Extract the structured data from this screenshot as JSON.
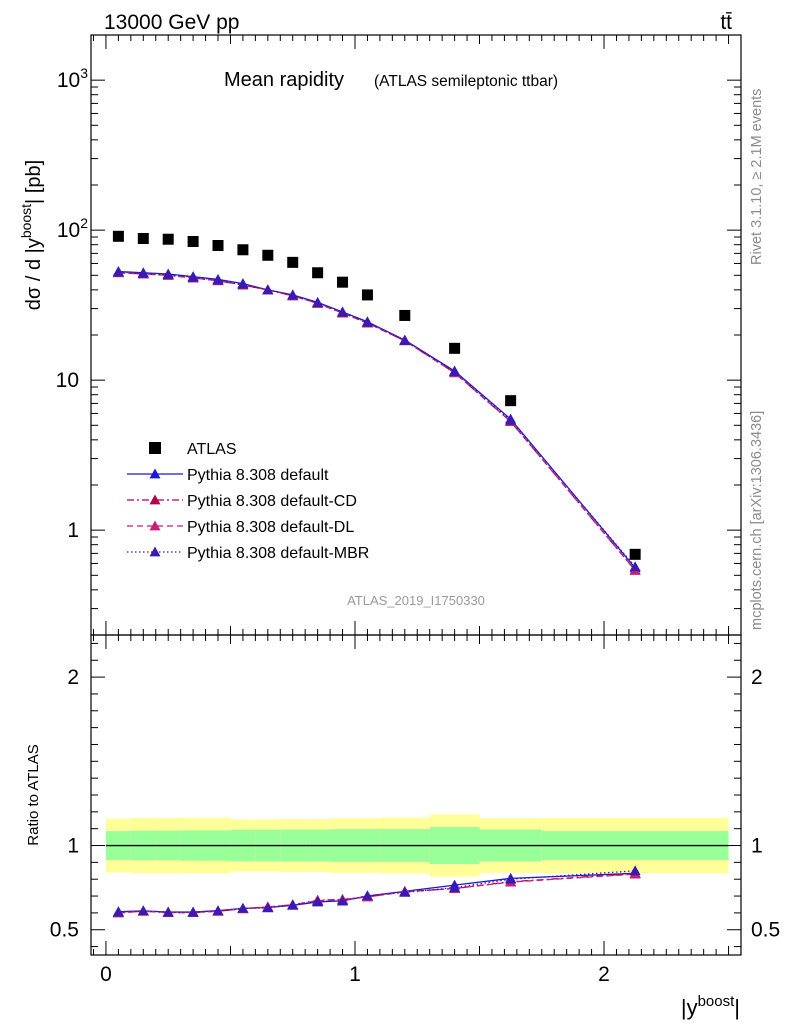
{
  "header": {
    "energy_label": "13000 GeV pp",
    "process_label": "tt̄"
  },
  "side_labels": {
    "rivet": "Rivet 3.1.10, ≥ 2.1M events",
    "mcplots": "mcplots.cern.ch [arXiv:1306.3436]"
  },
  "chart_data": [
    {
      "type": "scatter",
      "panel": "main",
      "title": "Mean rapidity",
      "subtitle": "(ATLAS semileptonic ttbar)",
      "ylabel": "dσ / d |y^boost| [pb]",
      "yscale": "log",
      "xlim": [
        -0.06,
        2.55
      ],
      "ylim": [
        0.2,
        2000
      ],
      "ytick_labels": [
        "1",
        "10",
        "10^2",
        "10^3"
      ],
      "analysis_label": "ATLAS_2019_I1750330",
      "legend_position": "lower-left",
      "x": [
        0.05,
        0.15,
        0.25,
        0.35,
        0.45,
        0.55,
        0.65,
        0.75,
        0.85,
        0.95,
        1.05,
        1.2,
        1.4,
        1.625,
        2.125
      ],
      "series": [
        {
          "name": "ATLAS",
          "style": "data",
          "color": "#000000",
          "values": [
            91,
            88,
            87,
            84,
            79,
            74,
            68,
            61,
            52,
            45,
            37,
            27,
            16.3,
            7.3,
            0.69
          ]
        },
        {
          "name": "Pythia 8.308 default",
          "style": "solid",
          "color": "#1a1ad4",
          "values": [
            53,
            52,
            51,
            49,
            47,
            44,
            40,
            37,
            33,
            28.5,
            24.5,
            18.5,
            11.5,
            5.5,
            0.56
          ]
        },
        {
          "name": "Pythia 8.308 default-CD",
          "style": "dashdot",
          "color": "#b3004d",
          "values": [
            52,
            51,
            50,
            48,
            46,
            43,
            40,
            36.5,
            32.5,
            28,
            24,
            18.3,
            11.2,
            5.3,
            0.54
          ]
        },
        {
          "name": "Pythia 8.308 default-DL",
          "style": "dashed",
          "color": "#c81e78",
          "values": [
            52,
            51,
            50,
            48,
            46,
            43,
            40,
            36.5,
            32.5,
            28,
            24,
            18.3,
            11.2,
            5.3,
            0.54
          ]
        },
        {
          "name": "Pythia 8.308 default-MBR",
          "style": "dotted",
          "color": "#3a1ab0",
          "values": [
            52.5,
            51.5,
            50.5,
            48.5,
            46.5,
            43.5,
            40,
            36.8,
            32.8,
            28.3,
            24.3,
            18.4,
            11.4,
            5.4,
            0.57
          ]
        }
      ]
    },
    {
      "type": "line",
      "panel": "ratio",
      "ylabel": "Ratio to ATLAS",
      "xlabel": "|y^boost|",
      "xlim": [
        -0.06,
        2.55
      ],
      "ylim": [
        0.35,
        2.25
      ],
      "ytick_labels": [
        "0.5",
        "1",
        "2"
      ],
      "xtick_labels": [
        "0",
        "1",
        "2"
      ],
      "bins": [
        [
          0.0,
          0.1
        ],
        [
          0.1,
          0.2
        ],
        [
          0.2,
          0.3
        ],
        [
          0.3,
          0.4
        ],
        [
          0.4,
          0.5
        ],
        [
          0.5,
          0.6
        ],
        [
          0.6,
          0.7
        ],
        [
          0.7,
          0.8
        ],
        [
          0.8,
          0.9
        ],
        [
          0.9,
          1.0
        ],
        [
          1.0,
          1.1
        ],
        [
          1.1,
          1.3
        ],
        [
          1.3,
          1.5
        ],
        [
          1.5,
          1.75
        ],
        [
          1.75,
          2.5
        ]
      ],
      "band_green": [
        [
          0.914,
          1.086
        ],
        [
          0.912,
          1.088
        ],
        [
          0.912,
          1.088
        ],
        [
          0.91,
          1.09
        ],
        [
          0.91,
          1.09
        ],
        [
          0.906,
          1.094
        ],
        [
          0.906,
          1.094
        ],
        [
          0.905,
          1.095
        ],
        [
          0.905,
          1.095
        ],
        [
          0.903,
          1.097
        ],
        [
          0.903,
          1.097
        ],
        [
          0.903,
          1.097
        ],
        [
          0.89,
          1.11
        ],
        [
          0.905,
          1.095
        ],
        [
          0.914,
          1.086
        ]
      ],
      "band_yellow": [
        [
          0.84,
          1.16
        ],
        [
          0.836,
          1.164
        ],
        [
          0.836,
          1.164
        ],
        [
          0.835,
          1.165
        ],
        [
          0.835,
          1.165
        ],
        [
          0.845,
          1.155
        ],
        [
          0.845,
          1.155
        ],
        [
          0.843,
          1.157
        ],
        [
          0.843,
          1.157
        ],
        [
          0.838,
          1.162
        ],
        [
          0.838,
          1.162
        ],
        [
          0.834,
          1.166
        ],
        [
          0.815,
          1.185
        ],
        [
          0.838,
          1.162
        ],
        [
          0.835,
          1.165
        ]
      ],
      "x": [
        0.05,
        0.15,
        0.25,
        0.35,
        0.45,
        0.55,
        0.65,
        0.75,
        0.85,
        0.95,
        1.05,
        1.2,
        1.4,
        1.625,
        2.125
      ],
      "series": [
        {
          "name": "Pythia 8.308 default",
          "style": "solid",
          "color": "#1a1ad4",
          "values": [
            0.607,
            0.612,
            0.605,
            0.605,
            0.613,
            0.627,
            0.632,
            0.645,
            0.665,
            0.672,
            0.7,
            0.728,
            0.765,
            0.805,
            0.835
          ]
        },
        {
          "name": "Pythia 8.308 default-CD",
          "style": "dashdot",
          "color": "#b3004d",
          "values": [
            0.6,
            0.61,
            0.602,
            0.602,
            0.61,
            0.625,
            0.635,
            0.648,
            0.675,
            0.68,
            0.695,
            0.725,
            0.745,
            0.785,
            0.833
          ]
        },
        {
          "name": "Pythia 8.308 default-DL",
          "style": "dashed",
          "color": "#c81e78",
          "values": [
            0.6,
            0.61,
            0.602,
            0.602,
            0.61,
            0.625,
            0.635,
            0.648,
            0.672,
            0.678,
            0.695,
            0.725,
            0.745,
            0.783,
            0.83
          ]
        },
        {
          "name": "Pythia 8.308 default-MBR",
          "style": "dotted",
          "color": "#3a1ab0",
          "values": [
            0.605,
            0.612,
            0.604,
            0.604,
            0.612,
            0.627,
            0.63,
            0.647,
            0.668,
            0.67,
            0.702,
            0.722,
            0.75,
            0.8,
            0.85
          ]
        }
      ]
    }
  ]
}
